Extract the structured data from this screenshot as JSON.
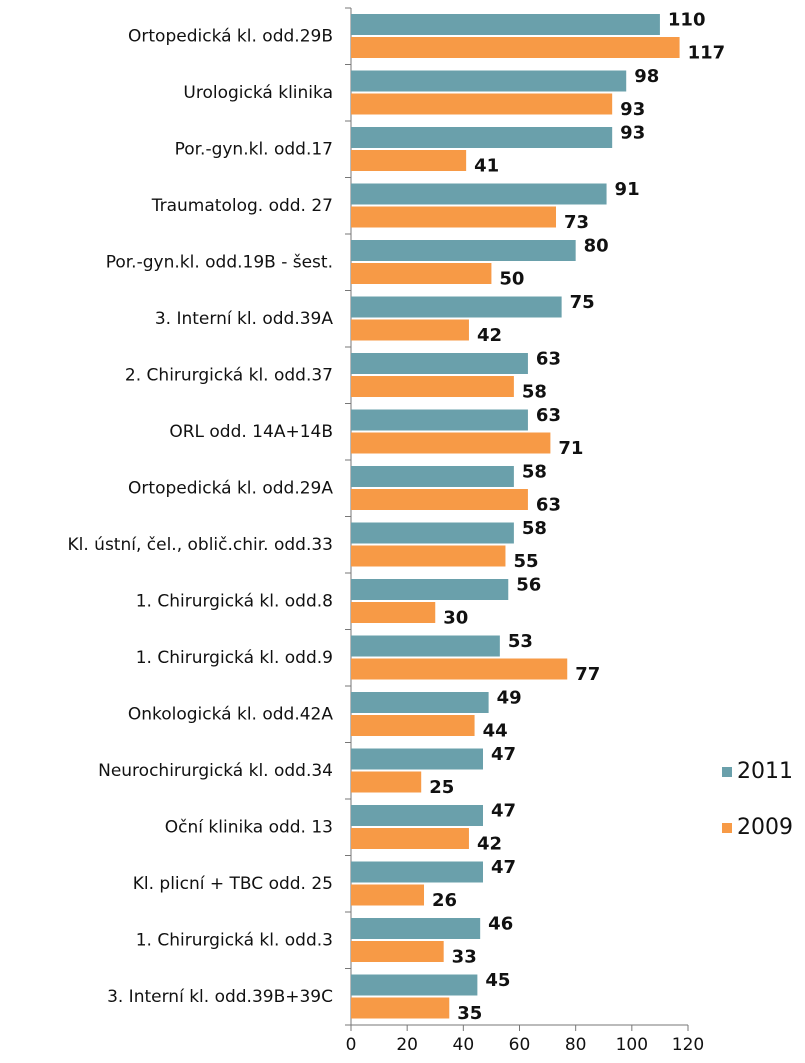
{
  "chart_data": {
    "type": "bar",
    "orientation": "horizontal",
    "categories": [
      "Ortopedická kl. odd.29B",
      "Urologická klinika",
      "Por.-gyn.kl. odd.17",
      "Traumatolog. odd. 27",
      "Por.-gyn.kl. odd.19B - šest.",
      "3. Interní kl. odd.39A",
      "2. Chirurgická kl. odd.37",
      "ORL odd. 14A+14B",
      "Ortopedická kl. odd.29A",
      "Kl. ústní, čel., oblič.chir. odd.33",
      "1. Chirurgická kl. odd.8",
      "1. Chirurgická kl. odd.9",
      "Onkologická kl. odd.42A",
      "Neurochirurgická kl. odd.34",
      "Oční klinika odd. 13",
      "Kl. plicní + TBC odd. 25",
      "1. Chirurgická kl. odd.3",
      "3. Interní kl. odd.39B+39C"
    ],
    "series": [
      {
        "name": "2011",
        "color": "#6aa0ab",
        "values": [
          110,
          98,
          93,
          91,
          80,
          75,
          63,
          63,
          58,
          58,
          56,
          53,
          49,
          47,
          47,
          47,
          46,
          45
        ]
      },
      {
        "name": "2009",
        "color": "#f79a46",
        "values": [
          117,
          93,
          41,
          73,
          50,
          42,
          58,
          71,
          63,
          55,
          30,
          77,
          44,
          25,
          42,
          26,
          33,
          35
        ]
      }
    ],
    "xlim": [
      0,
      120
    ],
    "xticks": [
      0,
      20,
      40,
      60,
      80,
      100,
      120
    ],
    "legend": "right"
  }
}
